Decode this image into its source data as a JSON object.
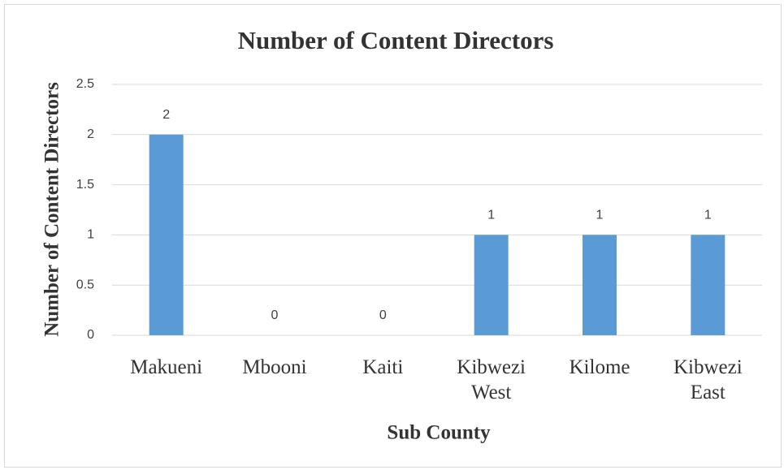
{
  "chart_data": {
    "type": "bar",
    "title": "Number of Content Directors",
    "x_label": "Sub County",
    "y_label": "Number of Content Directors",
    "categories": [
      "Makueni",
      "Mbooni",
      "Kaiti",
      "Kibwezi West",
      "Kilome",
      "Kibwezi East"
    ],
    "values": [
      2,
      0,
      0,
      1,
      1,
      1
    ],
    "color": "#5b9bd5",
    "ylim": [
      0,
      2.5
    ],
    "yticks": [
      0,
      0.5,
      1,
      1.5,
      2,
      2.5
    ],
    "grid": true,
    "data_labels": true
  }
}
